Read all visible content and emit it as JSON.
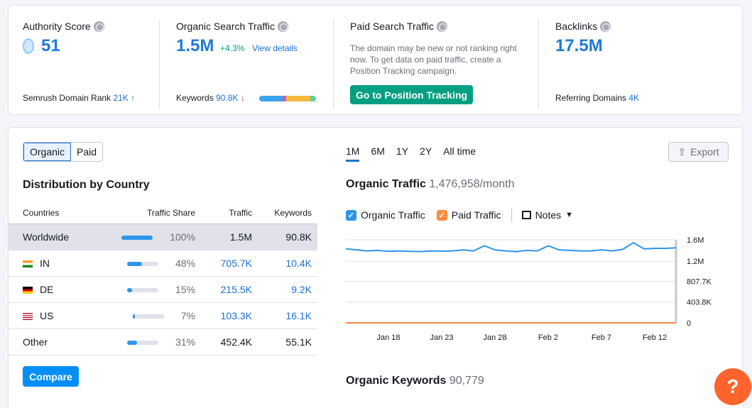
{
  "metrics": {
    "authority": {
      "title": "Authority Score",
      "value": "51",
      "foot_label": "Semrush Domain Rank",
      "foot_value": "21K",
      "foot_arrow": "↑"
    },
    "organic": {
      "title": "Organic Search Traffic",
      "value": "1.5M",
      "change": "+4.3%",
      "link": "View details",
      "foot_label": "Keywords",
      "foot_value": "90.8K",
      "foot_arrow": "↓"
    },
    "paid": {
      "title": "Paid Search Traffic",
      "desc": "The domain may be new or not ranking right now. To get data on paid traffic, create a Position Tracking campaign.",
      "cta": "Go to Position Tracking"
    },
    "backlinks": {
      "title": "Backlinks",
      "value": "17.5M",
      "foot_label": "Referring Domains",
      "foot_value": "4K"
    }
  },
  "keyword_bar": [
    {
      "color": "#3aa4ee",
      "share": 0.4
    },
    {
      "color": "#9a6fd6",
      "share": 0.08
    },
    {
      "color": "#f5b83d",
      "share": 0.42
    },
    {
      "color": "#5fcf9c",
      "share": 0.1
    }
  ],
  "toggle": {
    "organic": "Organic",
    "paid": "Paid"
  },
  "distribution": {
    "title": "Distribution by Country",
    "headers": [
      "Countries",
      "Traffic Share",
      "Traffic",
      "Keywords"
    ],
    "rows": [
      {
        "country": "Worldwide",
        "flag": "",
        "share": 1.0,
        "share_label": "100%",
        "traffic": "1.5M",
        "keywords": "90.8K"
      },
      {
        "country": "IN",
        "flag": "in",
        "share": 0.48,
        "share_label": "48%",
        "traffic": "705.7K",
        "keywords": "10.4K"
      },
      {
        "country": "DE",
        "flag": "de",
        "share": 0.15,
        "share_label": "15%",
        "traffic": "215.5K",
        "keywords": "9.2K"
      },
      {
        "country": "US",
        "flag": "us",
        "share": 0.07,
        "share_label": "7%",
        "traffic": "103.3K",
        "keywords": "16.1K"
      },
      {
        "country": "Other",
        "flag": "",
        "share": 0.31,
        "share_label": "31%",
        "traffic": "452.4K",
        "keywords": "55.1K"
      }
    ]
  },
  "compare": "Compare",
  "periods": [
    "1M",
    "6M",
    "1Y",
    "2Y",
    "All time"
  ],
  "export": "Export",
  "traffic_section": {
    "title": "Organic Traffic",
    "value": "1,476,958/month"
  },
  "legend": {
    "organic": "Organic Traffic",
    "paid": "Paid Traffic",
    "notes": "Notes"
  },
  "keywords_section": {
    "title": "Organic Keywords",
    "value": "90,779"
  },
  "chart_data": {
    "type": "line",
    "x": [
      "Jan 14",
      "Jan 15",
      "Jan 16",
      "Jan 17",
      "Jan 18",
      "Jan 19",
      "Jan 20",
      "Jan 21",
      "Jan 22",
      "Jan 23",
      "Jan 24",
      "Jan 25",
      "Jan 26",
      "Jan 27",
      "Jan 28",
      "Jan 29",
      "Jan 30",
      "Jan 31",
      "Feb 1",
      "Feb 2",
      "Feb 3",
      "Feb 4",
      "Feb 5",
      "Feb 6",
      "Feb 7",
      "Feb 8",
      "Feb 9",
      "Feb 10",
      "Feb 11",
      "Feb 12",
      "Feb 13",
      "Feb 14"
    ],
    "xticks": [
      "Jan 18",
      "Jan 23",
      "Jan 28",
      "Feb 2",
      "Feb 7",
      "Feb 12"
    ],
    "yticks": [
      "0",
      "403.8K",
      "807.7K",
      "1.2M",
      "1.6M"
    ],
    "ylim": [
      0,
      1615000
    ],
    "series": [
      {
        "name": "Organic Traffic",
        "color": "#2e95ea",
        "values": [
          1440000,
          1420000,
          1400000,
          1410000,
          1390000,
          1400000,
          1390000,
          1385000,
          1400000,
          1395000,
          1400000,
          1420000,
          1400000,
          1500000,
          1420000,
          1400000,
          1385000,
          1410000,
          1400000,
          1500000,
          1420000,
          1410000,
          1400000,
          1400000,
          1420000,
          1400000,
          1430000,
          1560000,
          1440000,
          1450000,
          1450000,
          1460000
        ]
      },
      {
        "name": "Paid Traffic",
        "color": "#ff8c42",
        "values": [
          0,
          0,
          0,
          0,
          0,
          0,
          0,
          0,
          0,
          0,
          0,
          0,
          0,
          0,
          0,
          0,
          0,
          0,
          0,
          0,
          0,
          0,
          0,
          0,
          0,
          0,
          0,
          0,
          0,
          0,
          0,
          0
        ]
      }
    ],
    "grid": true
  }
}
